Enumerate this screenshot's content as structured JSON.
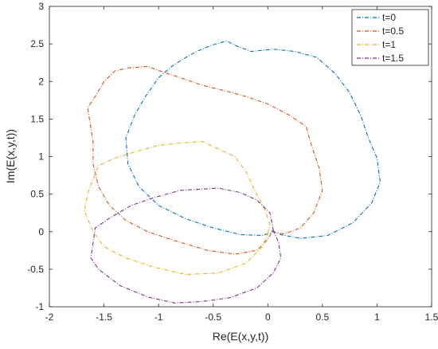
{
  "chart_data": {
    "type": "line",
    "xlabel": "Re(E(x,y,t))",
    "ylabel": "Im(E(x,y,t))",
    "xlim": [
      -2,
      1.5
    ],
    "ylim": [
      -1,
      3
    ],
    "xticks": [
      "-2",
      "-1.5",
      "-1",
      "-0.5",
      "0",
      "0.5",
      "1",
      "1.5"
    ],
    "yticks": [
      "-1",
      "-0.5",
      "0",
      "0.5",
      "1",
      "1.5",
      "2",
      "2.5",
      "3"
    ],
    "grid": false,
    "legend_position": "top-right",
    "series": [
      {
        "name": "t=0",
        "color": "#0072BD",
        "points": [
          [
            0.04,
            0.01
          ],
          [
            0.12,
            -0.04
          ],
          [
            0.3,
            -0.09
          ],
          [
            0.55,
            -0.05
          ],
          [
            0.78,
            0.12
          ],
          [
            0.95,
            0.38
          ],
          [
            1.03,
            0.66
          ],
          [
            1.0,
            0.98
          ],
          [
            0.92,
            1.25
          ],
          [
            0.85,
            1.55
          ],
          [
            0.75,
            1.85
          ],
          [
            0.62,
            2.1
          ],
          [
            0.45,
            2.32
          ],
          [
            0.25,
            2.4
          ],
          [
            0.05,
            2.43
          ],
          [
            -0.15,
            2.4
          ],
          [
            -0.28,
            2.47
          ],
          [
            -0.38,
            2.54
          ],
          [
            -0.52,
            2.48
          ],
          [
            -0.65,
            2.4
          ],
          [
            -0.75,
            2.32
          ],
          [
            -0.88,
            2.2
          ],
          [
            -1.0,
            2.05
          ],
          [
            -1.12,
            1.8
          ],
          [
            -1.22,
            1.55
          ],
          [
            -1.3,
            1.25
          ],
          [
            -1.28,
            0.9
          ],
          [
            -1.18,
            0.6
          ],
          [
            -1.0,
            0.35
          ],
          [
            -0.75,
            0.17
          ],
          [
            -0.5,
            0.05
          ],
          [
            -0.25,
            -0.04
          ],
          [
            -0.05,
            -0.05
          ],
          [
            0.02,
            -0.02
          ],
          [
            0.04,
            0.01
          ]
        ]
      },
      {
        "name": "t=0.5",
        "color": "#D95319",
        "points": [
          [
            0.04,
            0.0
          ],
          [
            0.15,
            -0.03
          ],
          [
            0.3,
            0.05
          ],
          [
            0.42,
            0.25
          ],
          [
            0.5,
            0.55
          ],
          [
            0.47,
            0.85
          ],
          [
            0.4,
            1.15
          ],
          [
            0.35,
            1.4
          ],
          [
            0.2,
            1.55
          ],
          [
            0.0,
            1.7
          ],
          [
            -0.2,
            1.8
          ],
          [
            -0.35,
            1.86
          ],
          [
            -0.6,
            1.95
          ],
          [
            -0.8,
            2.05
          ],
          [
            -0.95,
            2.12
          ],
          [
            -1.1,
            2.2
          ],
          [
            -1.28,
            2.18
          ],
          [
            -1.4,
            2.14
          ],
          [
            -1.5,
            2.0
          ],
          [
            -1.58,
            1.8
          ],
          [
            -1.65,
            1.65
          ],
          [
            -1.6,
            1.2
          ],
          [
            -1.6,
            0.9
          ],
          [
            -1.55,
            0.6
          ],
          [
            -1.45,
            0.35
          ],
          [
            -1.3,
            0.15
          ],
          [
            -1.1,
            0.0
          ],
          [
            -0.85,
            -0.12
          ],
          [
            -0.55,
            -0.25
          ],
          [
            -0.3,
            -0.3
          ],
          [
            -0.1,
            -0.25
          ],
          [
            0.0,
            -0.1
          ],
          [
            0.04,
            0.0
          ]
        ]
      },
      {
        "name": "t=1",
        "color": "#EDB120",
        "points": [
          [
            0.0,
            -0.02
          ],
          [
            0.02,
            0.1
          ],
          [
            -0.03,
            0.3
          ],
          [
            -0.12,
            0.55
          ],
          [
            -0.2,
            0.8
          ],
          [
            -0.3,
            1.0
          ],
          [
            -0.45,
            1.1
          ],
          [
            -0.6,
            1.2
          ],
          [
            -0.8,
            1.18
          ],
          [
            -1.0,
            1.15
          ],
          [
            -1.2,
            1.07
          ],
          [
            -1.4,
            0.98
          ],
          [
            -1.55,
            0.88
          ],
          [
            -1.6,
            0.7
          ],
          [
            -1.65,
            0.5
          ],
          [
            -1.68,
            0.28
          ],
          [
            -1.6,
            0.0
          ],
          [
            -1.5,
            -0.2
          ],
          [
            -1.3,
            -0.35
          ],
          [
            -1.05,
            -0.47
          ],
          [
            -0.75,
            -0.57
          ],
          [
            -0.45,
            -0.55
          ],
          [
            -0.2,
            -0.42
          ],
          [
            -0.05,
            -0.2
          ],
          [
            0.0,
            -0.02
          ]
        ]
      },
      {
        "name": "t=1.5",
        "color": "#7E2F8E",
        "points": [
          [
            0.05,
            0.02
          ],
          [
            0.1,
            -0.15
          ],
          [
            0.12,
            -0.35
          ],
          [
            0.05,
            -0.55
          ],
          [
            -0.1,
            -0.75
          ],
          [
            -0.35,
            -0.88
          ],
          [
            -0.6,
            -0.93
          ],
          [
            -0.85,
            -0.95
          ],
          [
            -1.1,
            -0.87
          ],
          [
            -1.35,
            -0.72
          ],
          [
            -1.55,
            -0.5
          ],
          [
            -1.62,
            -0.35
          ],
          [
            -1.6,
            -0.15
          ],
          [
            -1.58,
            0.05
          ],
          [
            -1.45,
            0.18
          ],
          [
            -1.25,
            0.35
          ],
          [
            -1.05,
            0.45
          ],
          [
            -0.8,
            0.55
          ],
          [
            -0.45,
            0.58
          ],
          [
            -0.25,
            0.52
          ],
          [
            -0.1,
            0.42
          ],
          [
            0.02,
            0.25
          ],
          [
            0.04,
            0.1
          ],
          [
            0.05,
            0.02
          ]
        ]
      }
    ]
  }
}
